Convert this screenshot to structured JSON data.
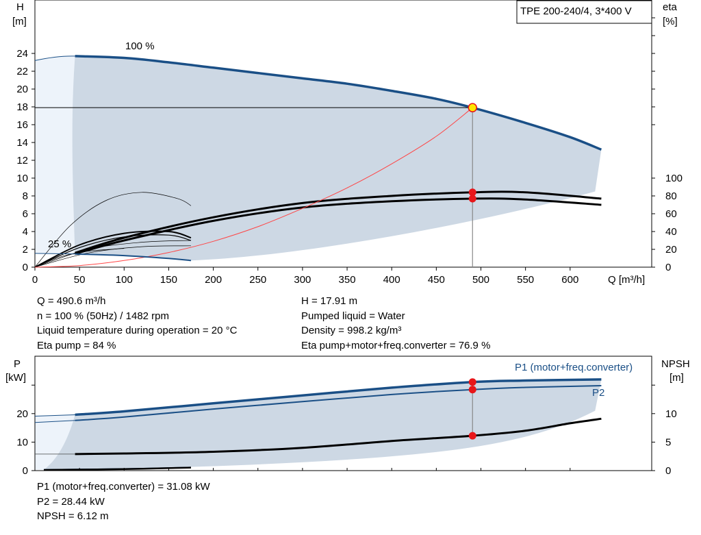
{
  "head_chart": {
    "type": "line",
    "title": "TPE 200-240/4, 3*400 V",
    "ylabel_left": [
      "H",
      "[m]"
    ],
    "ylabel_right": [
      "eta",
      "[%]"
    ],
    "xlabel": "Q [m³/h]",
    "x_ticks": [
      0,
      50,
      100,
      150,
      200,
      250,
      300,
      350,
      400,
      450,
      500,
      550,
      600
    ],
    "h_ticks": [
      0,
      2,
      4,
      6,
      8,
      10,
      12,
      14,
      16,
      18,
      20,
      22,
      24
    ],
    "eta_ticks": [
      0,
      20,
      40,
      60,
      80,
      100
    ],
    "xlim": [
      0,
      690
    ],
    "hlim": [
      0,
      30
    ],
    "etalim": [
      0,
      100
    ],
    "speed_labels": [
      "100 %",
      "25 %"
    ],
    "operating_point": {
      "q": 490.6,
      "h": 17.91
    },
    "colors": {
      "head_curve": "#1a4f86",
      "envelope": "#cdd8e4",
      "system_curve": "#ff4444",
      "marker": "#e8161a",
      "duty_marker": "#ffe600"
    },
    "head_curve_100": {
      "q": [
        45,
        100,
        150,
        200,
        250,
        300,
        350,
        400,
        450,
        490.6,
        550,
        600,
        635
      ],
      "h": [
        23.7,
        23.5,
        23.0,
        22.4,
        21.8,
        21.2,
        20.6,
        19.8,
        18.9,
        17.91,
        16.2,
        14.6,
        13.2
      ]
    },
    "head_curve_25": {
      "q": [
        45,
        100,
        150,
        175
      ],
      "h": [
        1.48,
        1.3,
        0.98,
        0.75
      ]
    },
    "system_curve": {
      "q": [
        0,
        50,
        100,
        150,
        200,
        250,
        300,
        350,
        400,
        450,
        490.6
      ],
      "h": [
        0,
        0.18,
        0.75,
        1.65,
        2.9,
        4.55,
        6.6,
        8.9,
        11.6,
        14.7,
        17.91
      ]
    },
    "eta_pump_100": {
      "q": [
        45,
        100,
        200,
        300,
        400,
        490.6,
        550,
        635
      ],
      "eta": [
        16,
        33,
        56,
        72,
        80,
        84,
        84,
        77
      ]
    },
    "eta_total_100": {
      "q": [
        45,
        100,
        200,
        300,
        400,
        490.6,
        550,
        635
      ],
      "eta": [
        15,
        30,
        52,
        67,
        74,
        76.9,
        76,
        70
      ]
    },
    "eta_pump_25": {
      "q": [
        0,
        50,
        100,
        150,
        175
      ],
      "eta": [
        0,
        25,
        38,
        40,
        33
      ]
    },
    "eta_total_25": {
      "q": [
        0,
        50,
        100,
        150,
        175
      ],
      "eta": [
        0,
        22,
        34,
        36,
        30
      ]
    },
    "eta_thin_min": {
      "q": [
        0,
        40,
        80,
        120,
        160,
        175
      ],
      "eta": [
        0,
        47,
        75,
        84,
        77,
        69
      ]
    }
  },
  "info_top_left": [
    "Q = 490.6 m³/h",
    "n = 100 % (50Hz) / 1482 rpm",
    "Liquid temperature during operation = 20 °C",
    "Eta pump = 84 %"
  ],
  "info_top_right": [
    "H = 17.91 m",
    "Pumped liquid = Water",
    "Density = 998.2 kg/m³",
    "Eta pump+motor+freq.converter = 76.9 %"
  ],
  "power_chart": {
    "type": "line",
    "ylabel_left": [
      "P",
      "[kW]"
    ],
    "ylabel_right": [
      "NPSH",
      "[m]"
    ],
    "p_ticks": [
      0,
      10,
      20
    ],
    "npsh_ticks": [
      0,
      5,
      10
    ],
    "plim": [
      0,
      40
    ],
    "npshlim": [
      0,
      20
    ],
    "series_labels": [
      "P1 (motor+freq.converter)",
      "P2"
    ],
    "p1_curve": {
      "q": [
        45,
        100,
        200,
        300,
        400,
        490.6,
        550,
        635
      ],
      "p": [
        19.6,
        20.8,
        23.6,
        26.4,
        29.1,
        31.08,
        31.6,
        32.0
      ]
    },
    "p2_curve": {
      "q": [
        45,
        100,
        200,
        300,
        400,
        490.6,
        550,
        635
      ],
      "p": [
        17.6,
        18.8,
        21.6,
        24.2,
        26.7,
        28.44,
        29.2,
        29.8
      ]
    },
    "npsh_curve": {
      "q": [
        45,
        100,
        200,
        300,
        400,
        490.6,
        550,
        600,
        635
      ],
      "npsh": [
        2.9,
        3.0,
        3.3,
        4.0,
        5.2,
        6.12,
        7.0,
        8.3,
        9.1
      ]
    },
    "p_curve_25": {
      "q": [
        10,
        100,
        175
      ],
      "p": [
        0.3,
        0.6,
        1.1
      ]
    }
  },
  "info_bottom": [
    "P1 (motor+freq.converter) = 31.08 kW",
    "P2 = 28.44 kW",
    "NPSH = 6.12 m"
  ]
}
